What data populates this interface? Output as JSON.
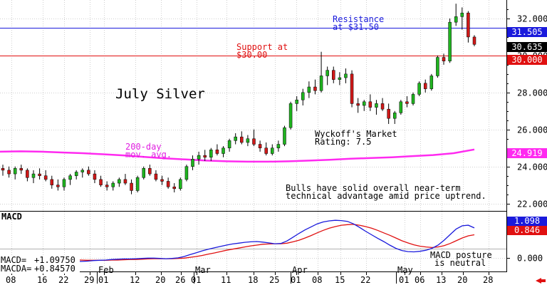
{
  "chart_data": {
    "type": "candlestick",
    "title": "July Silver",
    "price_axis": {
      "ylim": [
        21.6,
        33.0
      ],
      "ticks": [
        "32.000",
        "30.000",
        "28.000",
        "26.000",
        "24.000",
        "22.000"
      ]
    },
    "macd_axis": {
      "ylim": [
        -0.5,
        1.7
      ],
      "ticks": [
        "0.000"
      ]
    },
    "x_tick_labels": [
      "08",
      "16",
      "22",
      "29",
      "01",
      "12",
      "20",
      "26",
      "01",
      "11",
      "18",
      "25",
      "01",
      "08",
      "15",
      "22",
      "01",
      "06",
      "13",
      "20",
      "28"
    ],
    "month_labels": [
      "Feb",
      "Mar",
      "Apr",
      "May"
    ],
    "price_boxes": {
      "resistance": "31.505",
      "last": "30.635",
      "support": "30.000",
      "sma": "24.919"
    },
    "macd_boxes": {
      "macd": "1.098",
      "signal": "0.846"
    },
    "macd_legend": {
      "macd_label": "MACD=",
      "macd_value": "+1.09750",
      "signal_label": "MACDA=",
      "signal_value": "+0.84570"
    },
    "macd_panel_label": "MACD",
    "annotations": {
      "resistance_1": "Resistance",
      "resistance_2": "at $31.50",
      "support_1": "Support at",
      "support_2": "$30.00",
      "sma_1": "200-day",
      "sma_2": "mov. avg.",
      "rating_1": "Wyckoff's Market",
      "rating_2": "Rating: 7.5",
      "comment_1": "Bulls have solid overall near-term",
      "comment_2": "technical advantage amid price uptrend.",
      "macd_note_1": "MACD posture",
      "macd_note_2": "is neutral"
    },
    "lines": {
      "resistance": 31.5,
      "support": 30.0
    },
    "sma200": [
      24.8,
      24.82,
      24.8,
      24.76,
      24.72,
      24.66,
      24.6,
      24.52,
      24.44,
      24.38,
      24.32,
      24.28,
      24.26,
      24.26,
      24.28,
      24.32,
      24.36,
      24.42,
      24.46,
      24.5,
      24.56,
      24.62,
      24.72,
      24.92
    ],
    "candles": [
      {
        "o": 23.9,
        "h": 24.1,
        "l": 23.5,
        "c": 23.8
      },
      {
        "o": 23.8,
        "h": 24.0,
        "l": 23.4,
        "c": 23.6
      },
      {
        "o": 23.6,
        "h": 24.0,
        "l": 23.3,
        "c": 23.9
      },
      {
        "o": 23.9,
        "h": 24.1,
        "l": 23.6,
        "c": 23.8
      },
      {
        "o": 23.8,
        "h": 23.9,
        "l": 23.2,
        "c": 23.4
      },
      {
        "o": 23.4,
        "h": 23.8,
        "l": 23.1,
        "c": 23.6
      },
      {
        "o": 23.6,
        "h": 23.9,
        "l": 23.3,
        "c": 23.5
      },
      {
        "o": 23.5,
        "h": 23.8,
        "l": 23.2,
        "c": 23.3
      },
      {
        "o": 23.3,
        "h": 23.5,
        "l": 22.8,
        "c": 23.0
      },
      {
        "o": 23.0,
        "h": 23.3,
        "l": 22.7,
        "c": 22.9
      },
      {
        "o": 22.9,
        "h": 23.4,
        "l": 22.7,
        "c": 23.3
      },
      {
        "o": 23.3,
        "h": 23.6,
        "l": 23.0,
        "c": 23.5
      },
      {
        "o": 23.5,
        "h": 23.8,
        "l": 23.3,
        "c": 23.7
      },
      {
        "o": 23.7,
        "h": 23.9,
        "l": 23.4,
        "c": 23.8
      },
      {
        "o": 23.8,
        "h": 24.0,
        "l": 23.5,
        "c": 23.6
      },
      {
        "o": 23.6,
        "h": 23.8,
        "l": 23.1,
        "c": 23.3
      },
      {
        "o": 23.3,
        "h": 23.5,
        "l": 22.9,
        "c": 23.0
      },
      {
        "o": 23.0,
        "h": 23.2,
        "l": 22.7,
        "c": 22.9
      },
      {
        "o": 22.9,
        "h": 23.2,
        "l": 22.7,
        "c": 23.1
      },
      {
        "o": 23.1,
        "h": 23.4,
        "l": 22.9,
        "c": 23.3
      },
      {
        "o": 23.3,
        "h": 23.6,
        "l": 23.0,
        "c": 23.1
      },
      {
        "o": 23.1,
        "h": 23.3,
        "l": 22.5,
        "c": 22.7
      },
      {
        "o": 22.7,
        "h": 23.5,
        "l": 22.6,
        "c": 23.4
      },
      {
        "o": 23.4,
        "h": 24.0,
        "l": 23.3,
        "c": 23.9
      },
      {
        "o": 23.9,
        "h": 24.1,
        "l": 23.5,
        "c": 23.6
      },
      {
        "o": 23.6,
        "h": 23.8,
        "l": 23.2,
        "c": 23.3
      },
      {
        "o": 23.3,
        "h": 23.5,
        "l": 23.0,
        "c": 23.2
      },
      {
        "o": 23.2,
        "h": 23.4,
        "l": 22.8,
        "c": 22.9
      },
      {
        "o": 22.9,
        "h": 23.1,
        "l": 22.6,
        "c": 22.8
      },
      {
        "o": 22.8,
        "h": 23.4,
        "l": 22.7,
        "c": 23.3
      },
      {
        "o": 23.3,
        "h": 24.1,
        "l": 23.2,
        "c": 24.0
      },
      {
        "o": 24.0,
        "h": 24.6,
        "l": 23.8,
        "c": 24.4
      },
      {
        "o": 24.4,
        "h": 24.8,
        "l": 24.1,
        "c": 24.6
      },
      {
        "o": 24.6,
        "h": 24.9,
        "l": 24.3,
        "c": 24.5
      },
      {
        "o": 24.5,
        "h": 25.0,
        "l": 24.3,
        "c": 24.9
      },
      {
        "o": 24.9,
        "h": 25.2,
        "l": 24.6,
        "c": 24.7
      },
      {
        "o": 24.7,
        "h": 25.1,
        "l": 24.5,
        "c": 25.0
      },
      {
        "o": 25.0,
        "h": 25.5,
        "l": 24.8,
        "c": 25.4
      },
      {
        "o": 25.4,
        "h": 25.8,
        "l": 25.2,
        "c": 25.6
      },
      {
        "o": 25.6,
        "h": 25.9,
        "l": 25.2,
        "c": 25.3
      },
      {
        "o": 25.3,
        "h": 25.7,
        "l": 25.1,
        "c": 25.5
      },
      {
        "o": 25.5,
        "h": 26.0,
        "l": 25.1,
        "c": 25.2
      },
      {
        "o": 25.2,
        "h": 25.4,
        "l": 24.8,
        "c": 25.0
      },
      {
        "o": 25.0,
        "h": 25.3,
        "l": 24.6,
        "c": 24.7
      },
      {
        "o": 24.7,
        "h": 25.2,
        "l": 24.6,
        "c": 25.0
      },
      {
        "o": 25.0,
        "h": 25.4,
        "l": 24.8,
        "c": 25.2
      },
      {
        "o": 25.2,
        "h": 26.2,
        "l": 25.1,
        "c": 26.1
      },
      {
        "o": 26.1,
        "h": 27.5,
        "l": 26.0,
        "c": 27.4
      },
      {
        "o": 27.4,
        "h": 27.8,
        "l": 27.0,
        "c": 27.6
      },
      {
        "o": 27.6,
        "h": 28.2,
        "l": 27.3,
        "c": 28.0
      },
      {
        "o": 28.0,
        "h": 28.6,
        "l": 27.7,
        "c": 28.3
      },
      {
        "o": 28.3,
        "h": 28.7,
        "l": 27.9,
        "c": 28.1
      },
      {
        "o": 28.1,
        "h": 30.2,
        "l": 28.0,
        "c": 28.9
      },
      {
        "o": 28.9,
        "h": 29.4,
        "l": 28.4,
        "c": 29.2
      },
      {
        "o": 29.2,
        "h": 29.4,
        "l": 28.5,
        "c": 28.7
      },
      {
        "o": 28.7,
        "h": 29.1,
        "l": 28.4,
        "c": 28.8
      },
      {
        "o": 28.8,
        "h": 29.3,
        "l": 28.5,
        "c": 29.0
      },
      {
        "o": 29.0,
        "h": 29.2,
        "l": 27.2,
        "c": 27.4
      },
      {
        "o": 27.4,
        "h": 27.7,
        "l": 26.9,
        "c": 27.3
      },
      {
        "o": 27.3,
        "h": 27.6,
        "l": 27.0,
        "c": 27.5
      },
      {
        "o": 27.5,
        "h": 27.9,
        "l": 27.0,
        "c": 27.2
      },
      {
        "o": 27.2,
        "h": 27.6,
        "l": 26.8,
        "c": 27.4
      },
      {
        "o": 27.4,
        "h": 27.7,
        "l": 27.0,
        "c": 27.1
      },
      {
        "o": 27.1,
        "h": 27.4,
        "l": 26.3,
        "c": 26.6
      },
      {
        "o": 26.6,
        "h": 27.0,
        "l": 26.3,
        "c": 26.9
      },
      {
        "o": 26.9,
        "h": 27.6,
        "l": 26.8,
        "c": 27.5
      },
      {
        "o": 27.5,
        "h": 27.8,
        "l": 27.2,
        "c": 27.4
      },
      {
        "o": 27.4,
        "h": 28.0,
        "l": 27.3,
        "c": 27.9
      },
      {
        "o": 27.9,
        "h": 28.6,
        "l": 27.8,
        "c": 28.5
      },
      {
        "o": 28.5,
        "h": 28.7,
        "l": 28.0,
        "c": 28.2
      },
      {
        "o": 28.2,
        "h": 29.0,
        "l": 28.1,
        "c": 28.9
      },
      {
        "o": 28.9,
        "h": 30.0,
        "l": 28.8,
        "c": 29.9
      },
      {
        "o": 29.9,
        "h": 30.1,
        "l": 29.5,
        "c": 29.7
      },
      {
        "o": 29.7,
        "h": 32.0,
        "l": 29.6,
        "c": 31.8
      },
      {
        "o": 31.8,
        "h": 32.8,
        "l": 31.6,
        "c": 32.1
      },
      {
        "o": 32.1,
        "h": 32.6,
        "l": 31.4,
        "c": 32.3
      },
      {
        "o": 32.3,
        "h": 32.4,
        "l": 30.7,
        "c": 31.0
      },
      {
        "o": 31.0,
        "h": 31.1,
        "l": 30.5,
        "c": 30.6
      }
    ],
    "macd": [
      0.06,
      0.05,
      0.04,
      0.03,
      0.02,
      0.0,
      -0.02,
      -0.04,
      -0.06,
      -0.08,
      -0.1,
      -0.12,
      -0.13,
      -0.13,
      -0.12,
      -0.1,
      -0.09,
      -0.08,
      -0.06,
      -0.05,
      -0.04,
      -0.04,
      -0.03,
      -0.02,
      -0.01,
      -0.01,
      -0.02,
      -0.03,
      -0.02,
      0.0,
      0.05,
      0.12,
      0.19,
      0.26,
      0.32,
      0.37,
      0.42,
      0.47,
      0.51,
      0.54,
      0.57,
      0.59,
      0.6,
      0.58,
      0.55,
      0.52,
      0.53,
      0.62,
      0.76,
      0.9,
      1.03,
      1.14,
      1.25,
      1.32,
      1.36,
      1.38,
      1.37,
      1.34,
      1.25,
      1.12,
      0.98,
      0.85,
      0.72,
      0.6,
      0.47,
      0.35,
      0.27,
      0.23,
      0.22,
      0.24,
      0.28,
      0.35,
      0.47,
      0.65,
      0.86,
      1.06,
      1.18,
      1.2,
      1.1
    ],
    "signal": [
      0.05,
      0.05,
      0.04,
      0.04,
      0.03,
      0.02,
      0.01,
      0.0,
      -0.02,
      -0.03,
      -0.05,
      -0.06,
      -0.07,
      -0.08,
      -0.09,
      -0.09,
      -0.09,
      -0.09,
      -0.08,
      -0.08,
      -0.07,
      -0.06,
      -0.06,
      -0.05,
      -0.04,
      -0.03,
      -0.03,
      -0.03,
      -0.03,
      -0.02,
      -0.01,
      0.02,
      0.05,
      0.09,
      0.14,
      0.18,
      0.23,
      0.28,
      0.32,
      0.36,
      0.4,
      0.44,
      0.47,
      0.5,
      0.51,
      0.52,
      0.52,
      0.54,
      0.59,
      0.65,
      0.73,
      0.82,
      0.92,
      1.01,
      1.09,
      1.15,
      1.2,
      1.22,
      1.23,
      1.2,
      1.15,
      1.09,
      1.01,
      0.92,
      0.83,
      0.73,
      0.63,
      0.55,
      0.48,
      0.43,
      0.4,
      0.38,
      0.4,
      0.45,
      0.53,
      0.63,
      0.73,
      0.81,
      0.85
    ]
  }
}
